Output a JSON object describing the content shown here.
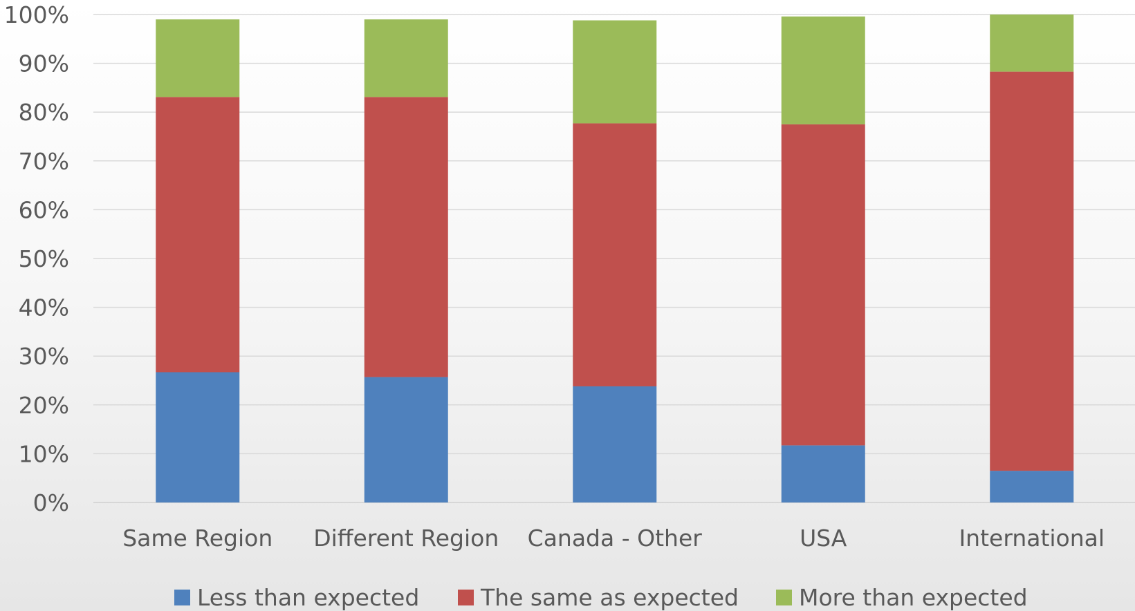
{
  "chart_data": {
    "type": "bar",
    "stacked": true,
    "title": "",
    "xlabel": "",
    "ylabel": "",
    "ylim": [
      0,
      100
    ],
    "y_tick_labels": [
      "0%",
      "10%",
      "20%",
      "30%",
      "40%",
      "50%",
      "60%",
      "70%",
      "80%",
      "90%",
      "100%"
    ],
    "grid": true,
    "legend_position": "bottom",
    "categories": [
      "Same Region",
      "Different Region",
      "Canada - Other",
      "USA",
      "International"
    ],
    "series": [
      {
        "name": "Less than expected",
        "color": "#4f81bd",
        "values": [
          26.7,
          25.7,
          23.8,
          11.7,
          6.5
        ]
      },
      {
        "name": "The same as expected",
        "color": "#c0504d",
        "values": [
          56.4,
          57.4,
          53.9,
          65.8,
          81.8
        ]
      },
      {
        "name": "More than expected",
        "color": "#9bbb59",
        "values": [
          15.9,
          15.9,
          21.1,
          22.1,
          11.7
        ]
      }
    ]
  }
}
